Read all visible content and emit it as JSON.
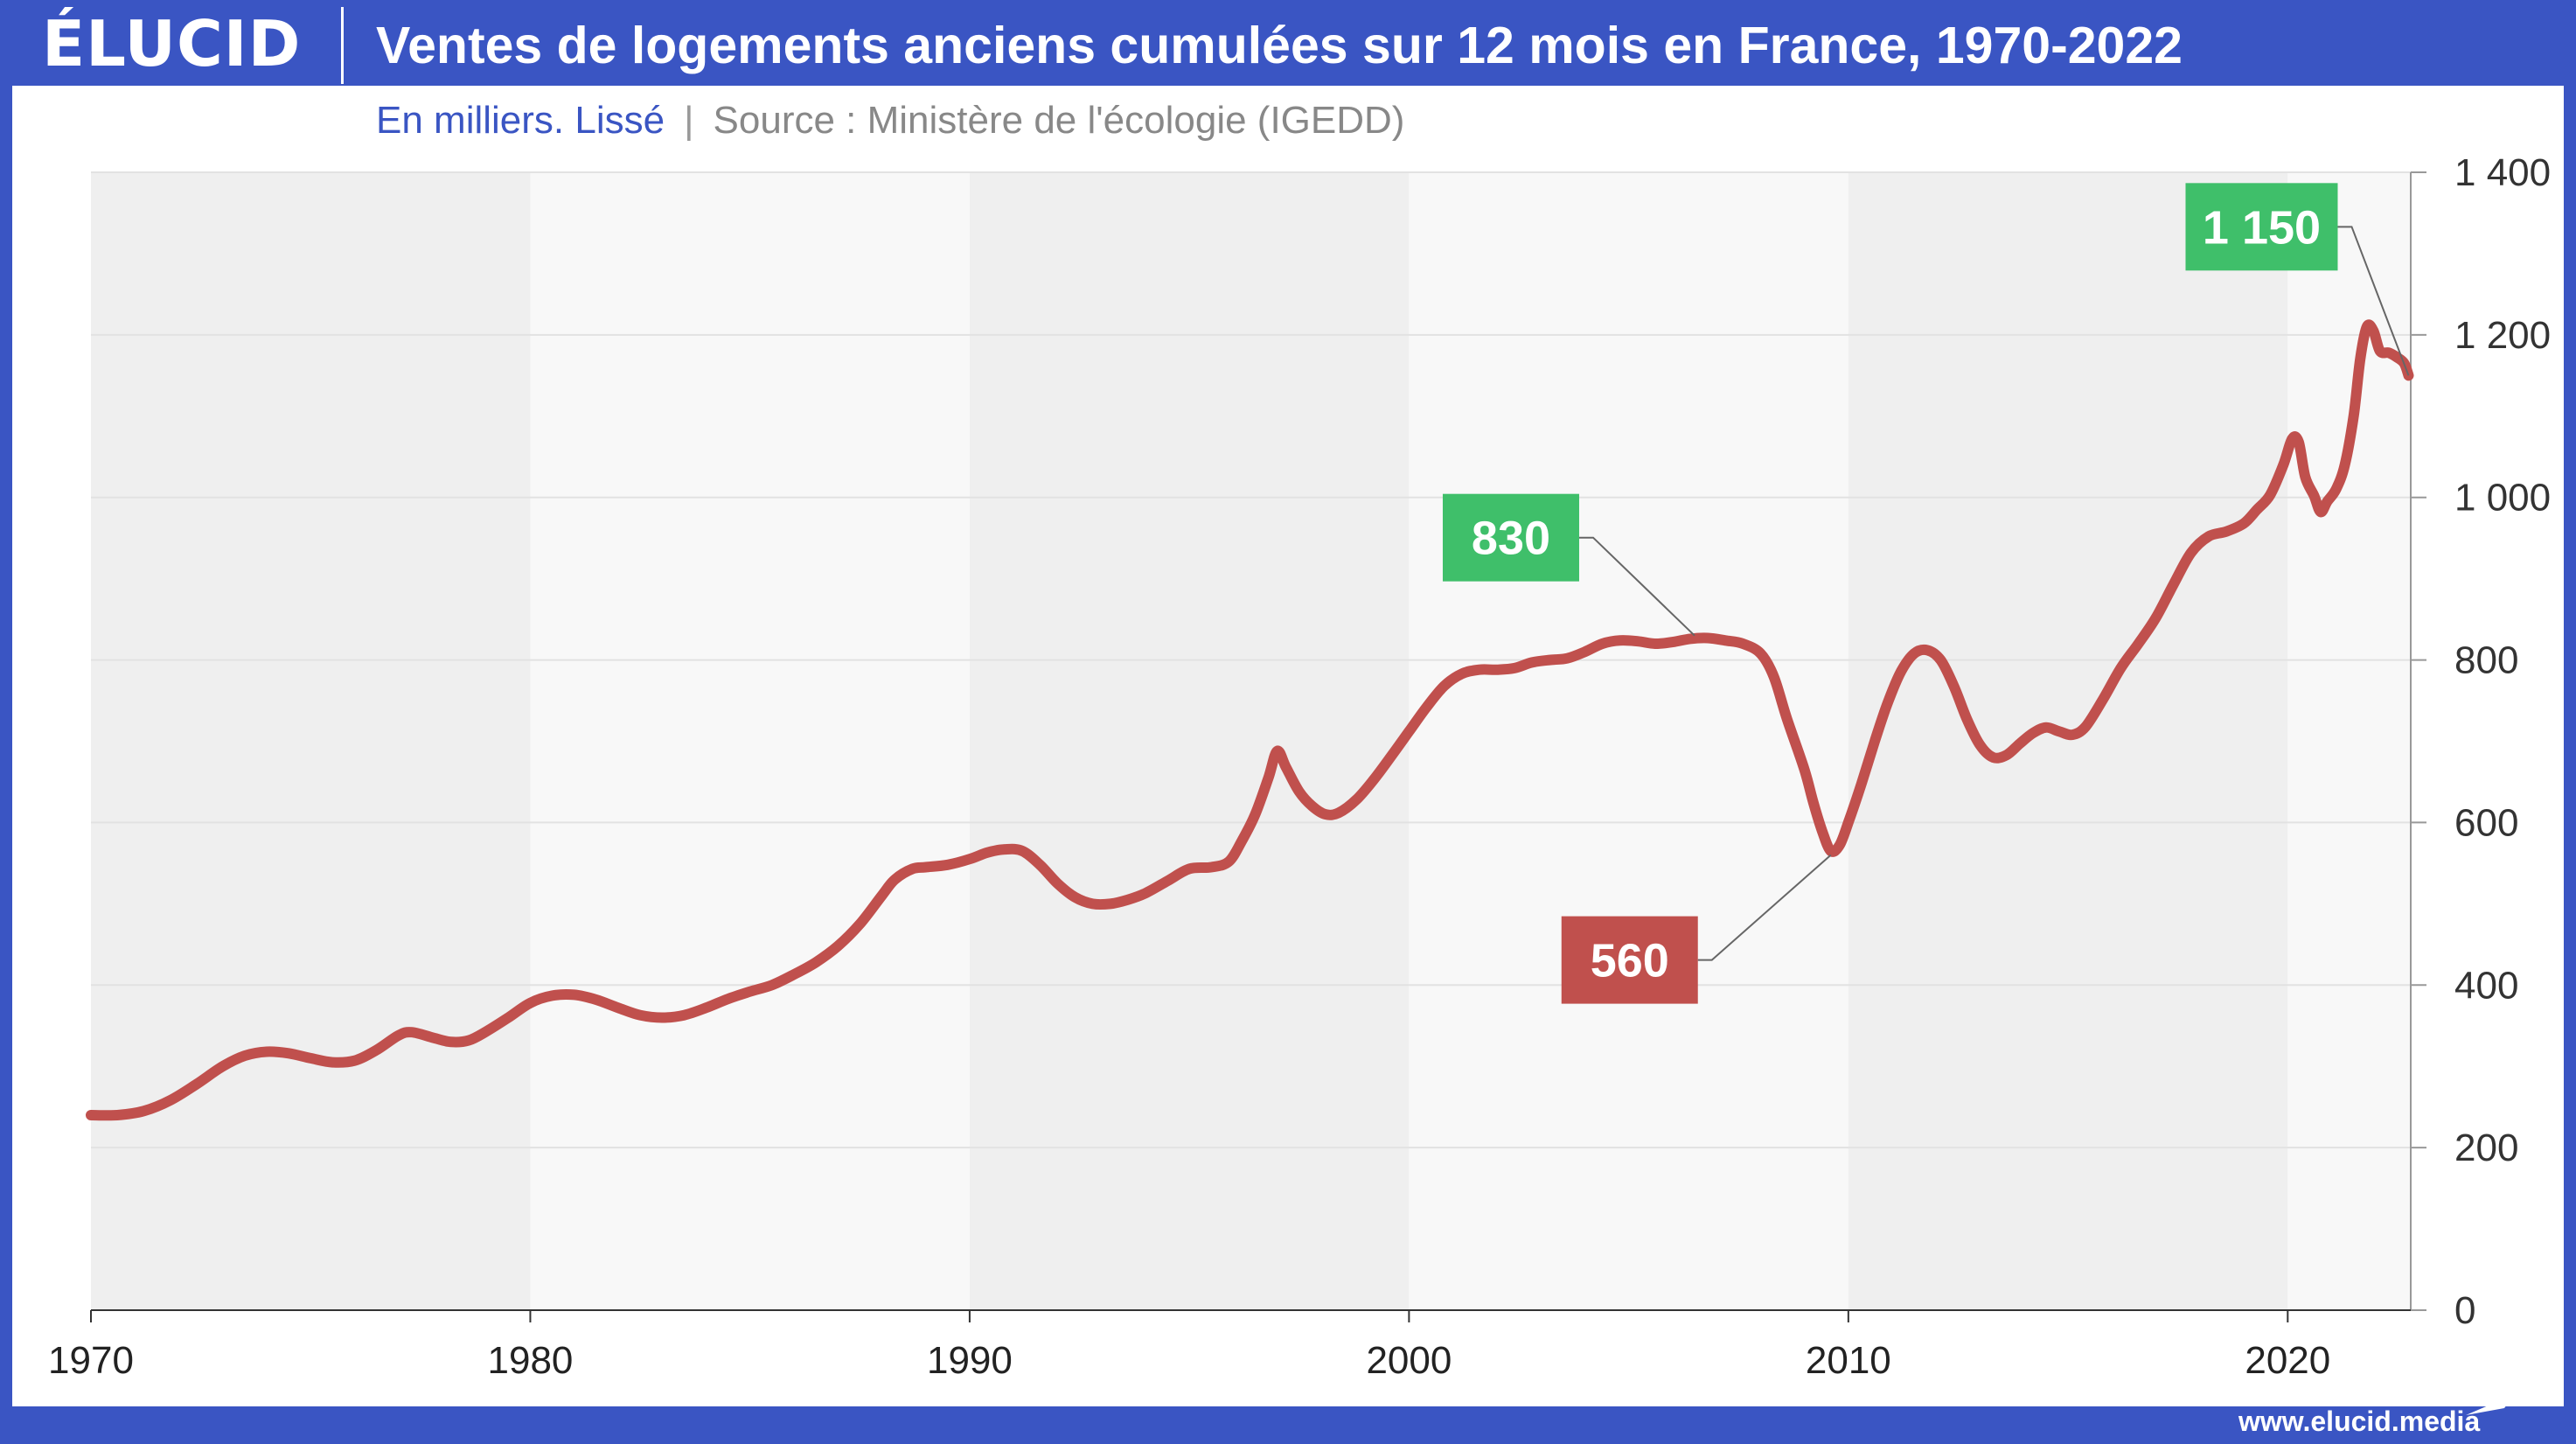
{
  "header": {
    "logo": "ÉLUCID",
    "title": "Ventes de logements anciens cumulées sur 12 mois en France, 1970-2022",
    "unit_note": "En milliers. Lissé",
    "separator": "|",
    "source": "Source : Ministère de l'écologie (IGEDD)"
  },
  "footer": {
    "url": "www.elucid.media"
  },
  "colors": {
    "brand": "#3a55c3",
    "line": "#c0504d",
    "label_high": "#3fbf6a",
    "label_low": "#c0504d",
    "band_dark": "#efefef",
    "band_light": "#f8f8f8"
  },
  "chart_data": {
    "type": "line",
    "title": "Ventes de logements anciens cumulées sur 12 mois en France, 1970-2022",
    "xlabel": "",
    "ylabel": "",
    "xlim": [
      1970,
      2022.8
    ],
    "ylim": [
      0,
      1400
    ],
    "x_ticks": [
      1970,
      1980,
      1990,
      2000,
      2010,
      2020
    ],
    "y_ticks": [
      0,
      200,
      400,
      600,
      800,
      1000,
      1200,
      1400
    ],
    "y_tick_labels": [
      "0",
      "200",
      "400",
      "600",
      "800",
      "1 000",
      "1 200",
      "1 400"
    ],
    "y_axis_side": "right",
    "grid": true,
    "legend": "none",
    "series": [
      {
        "points": [
          [
            1970.0,
            240
          ],
          [
            1970.6,
            240
          ],
          [
            1971.2,
            245
          ],
          [
            1971.8,
            258
          ],
          [
            1972.4,
            278
          ],
          [
            1973.0,
            300
          ],
          [
            1973.5,
            313
          ],
          [
            1974.0,
            318
          ],
          [
            1974.5,
            316
          ],
          [
            1975.0,
            310
          ],
          [
            1975.5,
            305
          ],
          [
            1976.0,
            307
          ],
          [
            1976.5,
            320
          ],
          [
            1977.0,
            338
          ],
          [
            1977.3,
            342
          ],
          [
            1977.8,
            335
          ],
          [
            1978.2,
            330
          ],
          [
            1978.6,
            332
          ],
          [
            1979.0,
            343
          ],
          [
            1979.5,
            360
          ],
          [
            1980.0,
            378
          ],
          [
            1980.5,
            387
          ],
          [
            1981.0,
            388
          ],
          [
            1981.5,
            382
          ],
          [
            1982.0,
            372
          ],
          [
            1982.5,
            363
          ],
          [
            1983.0,
            360
          ],
          [
            1983.5,
            363
          ],
          [
            1984.0,
            372
          ],
          [
            1984.5,
            383
          ],
          [
            1985.0,
            392
          ],
          [
            1985.5,
            400
          ],
          [
            1986.0,
            413
          ],
          [
            1986.5,
            428
          ],
          [
            1987.0,
            448
          ],
          [
            1987.5,
            475
          ],
          [
            1988.0,
            510
          ],
          [
            1988.3,
            530
          ],
          [
            1988.7,
            543
          ],
          [
            1989.0,
            545
          ],
          [
            1989.5,
            548
          ],
          [
            1990.0,
            555
          ],
          [
            1990.4,
            563
          ],
          [
            1990.8,
            567
          ],
          [
            1991.2,
            565
          ],
          [
            1991.6,
            548
          ],
          [
            1992.0,
            525
          ],
          [
            1992.4,
            508
          ],
          [
            1992.8,
            500
          ],
          [
            1993.2,
            500
          ],
          [
            1993.6,
            505
          ],
          [
            1994.0,
            513
          ],
          [
            1994.5,
            528
          ],
          [
            1995.0,
            543
          ],
          [
            1995.5,
            545
          ],
          [
            1995.9,
            552
          ],
          [
            1996.2,
            578
          ],
          [
            1996.5,
            610
          ],
          [
            1996.8,
            655
          ],
          [
            1997.0,
            688
          ],
          [
            1997.2,
            668
          ],
          [
            1997.5,
            638
          ],
          [
            1997.8,
            620
          ],
          [
            1998.1,
            610
          ],
          [
            1998.4,
            612
          ],
          [
            1998.8,
            628
          ],
          [
            1999.2,
            653
          ],
          [
            1999.6,
            682
          ],
          [
            2000.0,
            712
          ],
          [
            2000.4,
            742
          ],
          [
            2000.8,
            768
          ],
          [
            2001.2,
            783
          ],
          [
            2001.6,
            788
          ],
          [
            2002.0,
            788
          ],
          [
            2002.4,
            790
          ],
          [
            2002.8,
            797
          ],
          [
            2003.2,
            800
          ],
          [
            2003.6,
            802
          ],
          [
            2004.0,
            810
          ],
          [
            2004.4,
            820
          ],
          [
            2004.8,
            824
          ],
          [
            2005.2,
            823
          ],
          [
            2005.6,
            820
          ],
          [
            2006.0,
            822
          ],
          [
            2006.4,
            826
          ],
          [
            2006.8,
            827
          ],
          [
            2007.2,
            824
          ],
          [
            2007.6,
            820
          ],
          [
            2008.0,
            808
          ],
          [
            2008.3,
            780
          ],
          [
            2008.6,
            728
          ],
          [
            2009.0,
            665
          ],
          [
            2009.2,
            625
          ],
          [
            2009.4,
            590
          ],
          [
            2009.6,
            565
          ],
          [
            2009.8,
            572
          ],
          [
            2010.0,
            600
          ],
          [
            2010.3,
            648
          ],
          [
            2010.6,
            700
          ],
          [
            2010.9,
            748
          ],
          [
            2011.2,
            786
          ],
          [
            2011.5,
            808
          ],
          [
            2011.8,
            812
          ],
          [
            2012.1,
            800
          ],
          [
            2012.4,
            768
          ],
          [
            2012.7,
            727
          ],
          [
            2013.0,
            695
          ],
          [
            2013.3,
            680
          ],
          [
            2013.6,
            683
          ],
          [
            2013.9,
            697
          ],
          [
            2014.2,
            710
          ],
          [
            2014.5,
            717
          ],
          [
            2014.8,
            712
          ],
          [
            2015.1,
            708
          ],
          [
            2015.4,
            718
          ],
          [
            2015.8,
            752
          ],
          [
            2016.2,
            790
          ],
          [
            2016.6,
            820
          ],
          [
            2017.0,
            852
          ],
          [
            2017.4,
            893
          ],
          [
            2017.8,
            932
          ],
          [
            2018.2,
            952
          ],
          [
            2018.6,
            958
          ],
          [
            2019.0,
            968
          ],
          [
            2019.3,
            985
          ],
          [
            2019.6,
            1003
          ],
          [
            2019.9,
            1040
          ],
          [
            2020.1,
            1072
          ],
          [
            2020.25,
            1068
          ],
          [
            2020.4,
            1025
          ],
          [
            2020.6,
            1002
          ],
          [
            2020.75,
            982
          ],
          [
            2020.9,
            995
          ],
          [
            2021.1,
            1010
          ],
          [
            2021.3,
            1040
          ],
          [
            2021.5,
            1100
          ],
          [
            2021.65,
            1170
          ],
          [
            2021.8,
            1210
          ],
          [
            2021.95,
            1205
          ],
          [
            2022.1,
            1180
          ],
          [
            2022.3,
            1178
          ],
          [
            2022.5,
            1172
          ],
          [
            2022.65,
            1165
          ],
          [
            2022.75,
            1150
          ]
        ]
      }
    ],
    "annotations": [
      {
        "text": "1 150",
        "x": 2022.75,
        "y": 1150,
        "style": "high"
      },
      {
        "text": "830",
        "x": 2006.5,
        "y": 830,
        "style": "high"
      },
      {
        "text": "560",
        "x": 2009.6,
        "y": 560,
        "style": "low"
      }
    ]
  }
}
